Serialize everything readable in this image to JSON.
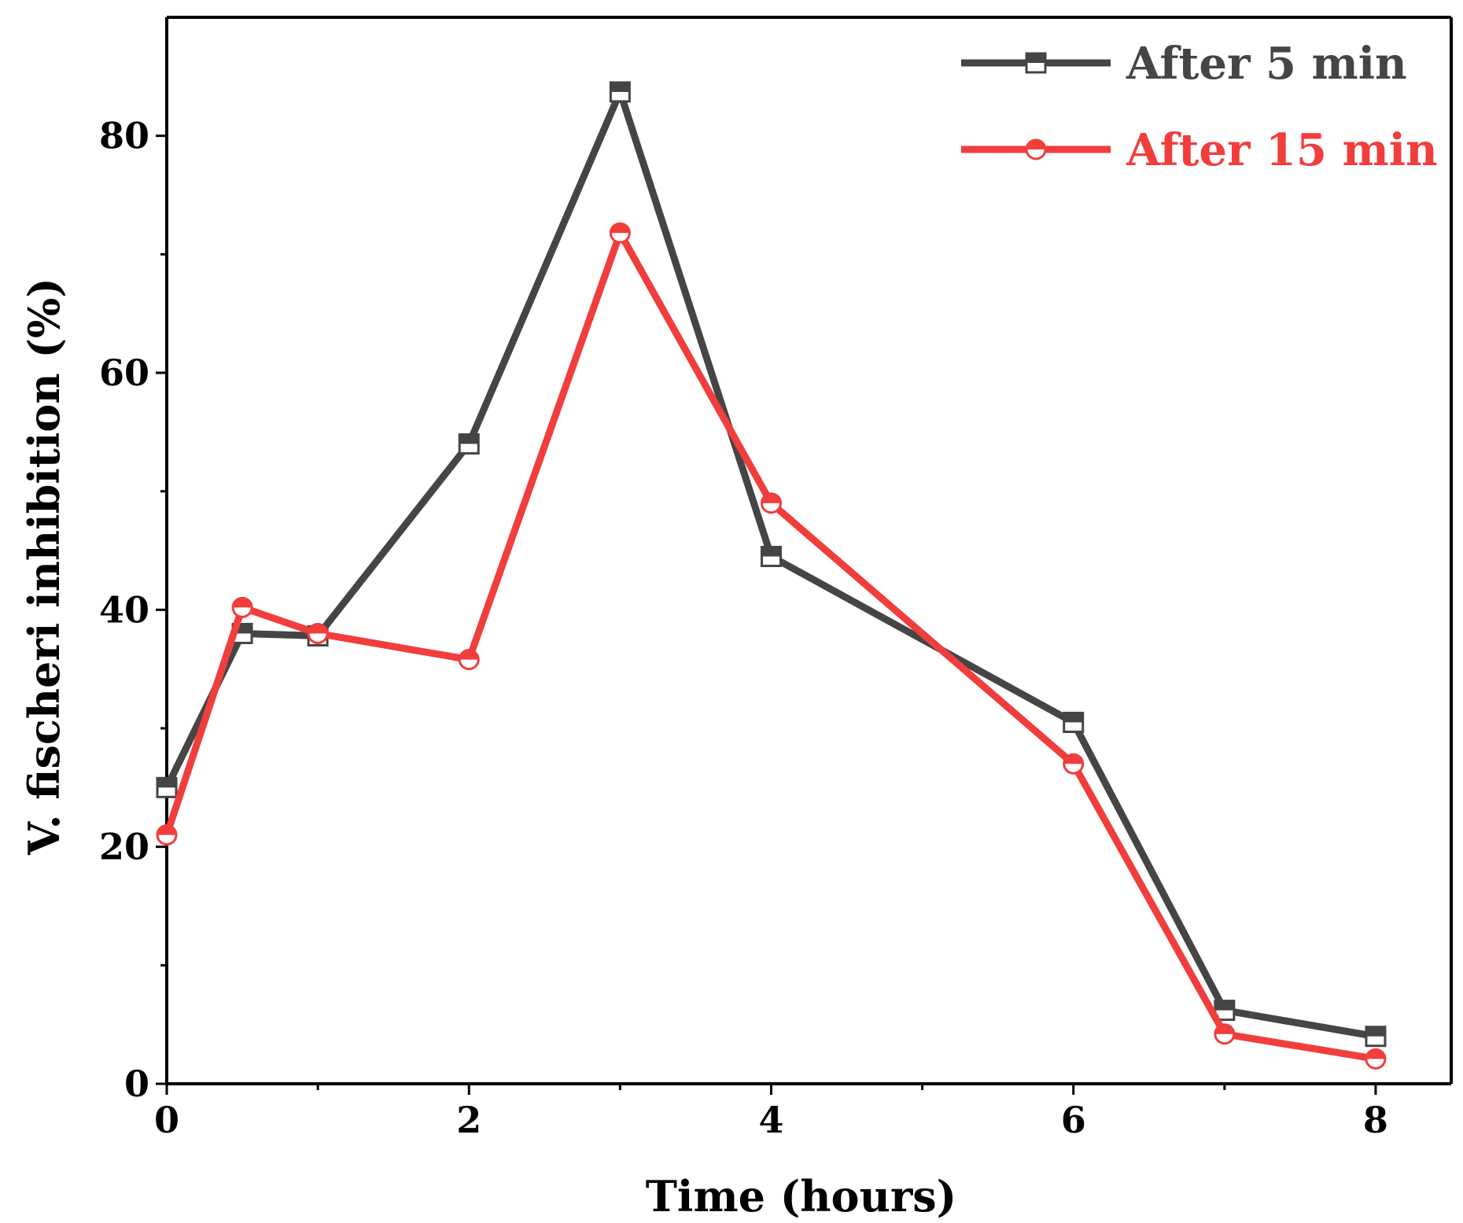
{
  "chart_data": {
    "type": "line",
    "title": "",
    "xlabel": "Time (hours)",
    "ylabel": "V. fischeri inhibition (%)",
    "xlim": [
      0,
      8.5
    ],
    "ylim": [
      0,
      90
    ],
    "x_ticks": [
      0,
      2,
      4,
      6,
      8
    ],
    "x_minor_ticks": [
      1,
      3,
      5,
      7
    ],
    "y_ticks": [
      0,
      20,
      40,
      60,
      80
    ],
    "y_minor_ticks": [
      10,
      30,
      50,
      70
    ],
    "legend_position": "top-right",
    "series": [
      {
        "name": "After 5 min",
        "color": "#454545",
        "marker": "square-half-filled",
        "x": [
          0,
          0.5,
          1,
          2,
          3,
          4,
          6,
          7,
          8
        ],
        "y": [
          25,
          38,
          37.8,
          54,
          83.7,
          44.5,
          30.5,
          6.2,
          4.0
        ]
      },
      {
        "name": "After 15 min",
        "color": "#f23d3d",
        "marker": "circle-half-filled",
        "x": [
          0,
          0.5,
          1,
          2,
          3,
          4,
          6,
          7,
          8
        ],
        "y": [
          21,
          40.2,
          38,
          35.8,
          71.8,
          49,
          27,
          4.2,
          2.1
        ]
      }
    ]
  }
}
